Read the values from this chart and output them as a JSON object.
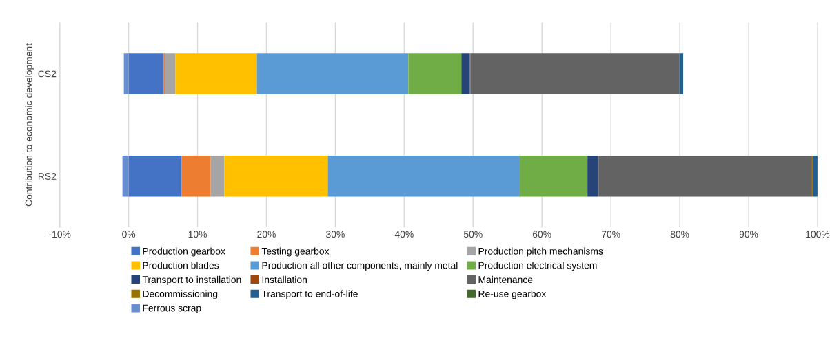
{
  "chart_data": {
    "type": "bar",
    "orientation": "horizontal",
    "stacked": true,
    "ylabel": "Contribution to economic development",
    "categories": [
      "CS2",
      "RS2"
    ],
    "xlim": [
      -10,
      100
    ],
    "xticks": [
      {
        "value": -10,
        "label": "-10%"
      },
      {
        "value": 0,
        "label": "0%"
      },
      {
        "value": 10,
        "label": "10%"
      },
      {
        "value": 20,
        "label": "20%"
      },
      {
        "value": 30,
        "label": "30%"
      },
      {
        "value": 40,
        "label": "40%"
      },
      {
        "value": 50,
        "label": "50%"
      },
      {
        "value": 60,
        "label": "60%"
      },
      {
        "value": 70,
        "label": "70%"
      },
      {
        "value": 80,
        "label": "80%"
      },
      {
        "value": 90,
        "label": "90%"
      },
      {
        "value": 100,
        "label": "100%"
      }
    ],
    "grid": "x",
    "legend": "bottom",
    "series": [
      {
        "name": "Production gearbox",
        "color": "#4472c4",
        "values": [
          5.1,
          7.7
        ]
      },
      {
        "name": "Testing gearbox",
        "color": "#ed7d31",
        "values": [
          0.2,
          4.2
        ]
      },
      {
        "name": "Production pitch mechanisms",
        "color": "#a5a5a5",
        "values": [
          1.5,
          2.0
        ]
      },
      {
        "name": "Production blades",
        "color": "#ffc000",
        "values": [
          11.8,
          15.0
        ]
      },
      {
        "name": "Production all other components, mainly metal",
        "color": "#5b9bd5",
        "values": [
          22.0,
          27.9
        ]
      },
      {
        "name": "Production electrical system",
        "color": "#70ad47",
        "values": [
          7.7,
          9.8
        ]
      },
      {
        "name": "Transport to installation",
        "color": "#264478",
        "values": [
          1.2,
          1.5
        ]
      },
      {
        "name": "Installation",
        "color": "#9e480e",
        "values": [
          0.1,
          0.1
        ]
      },
      {
        "name": "Maintenance",
        "color": "#636363",
        "values": [
          30.3,
          31.0
        ]
      },
      {
        "name": "Decommissioning",
        "color": "#997300",
        "values": [
          0.1,
          0.1
        ]
      },
      {
        "name": "Transport to end-of-life",
        "color": "#255e91",
        "values": [
          0.5,
          0.7
        ]
      },
      {
        "name": "Re-use gearbox",
        "color": "#43682b",
        "values": [
          0,
          0
        ]
      },
      {
        "name": "Ferrous scrap",
        "color": "#698ed0",
        "values": [
          -0.7,
          -0.9
        ]
      }
    ]
  }
}
